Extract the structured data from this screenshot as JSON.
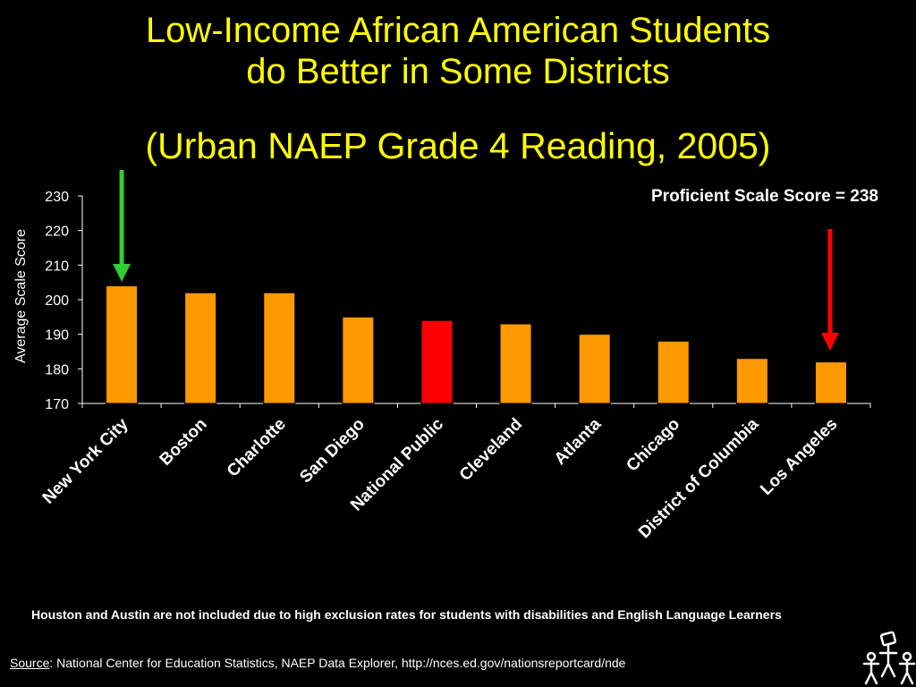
{
  "title_line1": "Low-Income African American Students",
  "title_line2": "do Better in Some Districts",
  "subtitle": "(Urban NAEP Grade 4 Reading, 2005)",
  "chart_data": {
    "type": "bar",
    "categories": [
      "New York City",
      "Boston",
      "Charlotte",
      "San Diego",
      "National Public",
      "Cleveland",
      "Atlanta",
      "Chicago",
      "District of Columbia",
      "Los Angeles"
    ],
    "values": [
      204,
      202,
      202,
      195,
      194,
      193,
      190,
      188,
      183,
      182
    ],
    "ylabel": "Average Scale Score",
    "ylim": [
      170,
      230
    ],
    "yticks": [
      170,
      180,
      190,
      200,
      210,
      220,
      230
    ],
    "annotation": "Proficient Scale Score = 238",
    "bar_color": "#ff9900",
    "highlight_color": "#ff0000",
    "highlight_category": "National Public",
    "arrow_up_color": "#33cc33",
    "arrow_down_color": "#ff0000",
    "grid": false
  },
  "note": "Houston and Austin are not included due to high exclusion rates for students with disabilities and English Language Learners",
  "source_label": "Source",
  "source_text": ":  National Center for Education Statistics, NAEP Data Explorer, http://nces.ed.gov/nationsreportcard/nde",
  "logo_icon": "people-figures-icon"
}
